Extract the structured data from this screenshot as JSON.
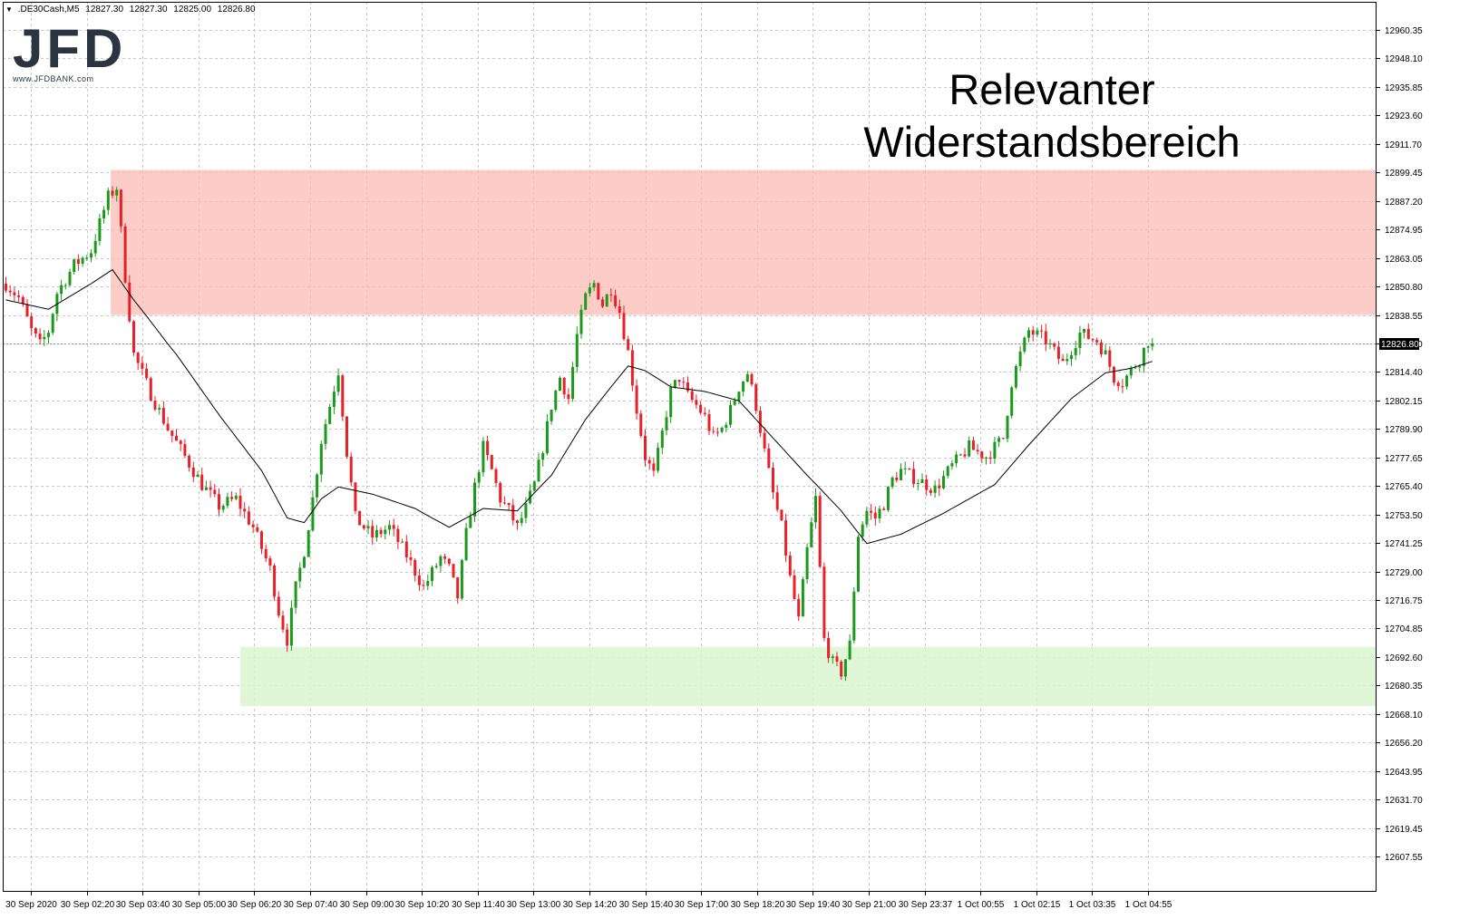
{
  "header": {
    "symbol": ".DE30Cash,M5",
    "open": "12827.30",
    "high": "12827.30",
    "low": "12825.00",
    "close": "12826.80"
  },
  "logo": {
    "text": "JFD",
    "url_text": "www.JFDBANK.com"
  },
  "annotation": {
    "line1": "Relevanter",
    "line2": "Widerstandsbereich"
  },
  "colors": {
    "bull": "#1a9a1a",
    "bear": "#e8202a",
    "resistance_zone": "#fbb8b0",
    "support_zone": "#d9f5d0",
    "grid": "#c8c8c8",
    "ma_line": "#000000"
  },
  "chart_data": {
    "type": "candlestick",
    "title": "",
    "instrument": ".DE30Cash",
    "timeframe": "M5",
    "y_ticks": [
      "12960.35",
      "12948.10",
      "12935.85",
      "12923.60",
      "12911.70",
      "12899.45",
      "12887.20",
      "12874.95",
      "12863.05",
      "12850.80",
      "12838.55",
      "12826.80",
      "12814.40",
      "12802.15",
      "12789.90",
      "12777.65",
      "12765.40",
      "12753.50",
      "12741.25",
      "12729.00",
      "12716.75",
      "12704.85",
      "12692.60",
      "12680.35",
      "12668.10",
      "12656.20",
      "12643.95",
      "12631.70",
      "12619.45",
      "12607.55"
    ],
    "ylim": [
      12605.0,
      12966.0
    ],
    "x_ticks": [
      "30 Sep 2020",
      "30 Sep 02:20",
      "30 Sep 03:40",
      "30 Sep 05:00",
      "30 Sep 06:20",
      "30 Sep 07:40",
      "30 Sep 09:00",
      "30 Sep 10:20",
      "30 Sep 11:40",
      "30 Sep 13:00",
      "30 Sep 14:20",
      "30 Sep 15:40",
      "30 Sep 17:00",
      "30 Sep 18:20",
      "30 Sep 19:40",
      "30 Sep 21:00",
      "30 Sep 23:37",
      "1 Oct 00:55",
      "1 Oct 02:15",
      "1 Oct 03:35",
      "1 Oct 04:55"
    ],
    "current_price": "12826.80",
    "zones": [
      {
        "name": "resistance",
        "from": 12838.55,
        "to": 12900.5,
        "start_x_tick": 1.43
      },
      {
        "name": "support",
        "from": 12671.5,
        "to": 12697.0,
        "start_x_tick": 3.75
      }
    ],
    "price_path": [
      [
        0,
        12852
      ],
      [
        3,
        12846
      ],
      [
        6,
        12832
      ],
      [
        8,
        12826
      ],
      [
        10,
        12832
      ],
      [
        12,
        12848
      ],
      [
        16,
        12860
      ],
      [
        20,
        12866
      ],
      [
        24,
        12889
      ],
      [
        26,
        12893
      ],
      [
        28,
        12855
      ],
      [
        30,
        12822
      ],
      [
        34,
        12805
      ],
      [
        38,
        12790
      ],
      [
        42,
        12778
      ],
      [
        46,
        12766
      ],
      [
        50,
        12757
      ],
      [
        54,
        12760
      ],
      [
        58,
        12748
      ],
      [
        62,
        12730
      ],
      [
        64,
        12712
      ],
      [
        66,
        12700
      ],
      [
        68,
        12722
      ],
      [
        70,
        12738
      ],
      [
        72,
        12760
      ],
      [
        74,
        12785
      ],
      [
        76,
        12800
      ],
      [
        78,
        12815
      ],
      [
        80,
        12780
      ],
      [
        82,
        12752
      ],
      [
        86,
        12744
      ],
      [
        90,
        12748
      ],
      [
        94,
        12736
      ],
      [
        98,
        12722
      ],
      [
        102,
        12735
      ],
      [
        104,
        12730
      ],
      [
        106,
        12718
      ],
      [
        108,
        12745
      ],
      [
        110,
        12765
      ],
      [
        112,
        12782
      ],
      [
        114,
        12772
      ],
      [
        116,
        12760
      ],
      [
        118,
        12755
      ],
      [
        120,
        12748
      ],
      [
        122,
        12756
      ],
      [
        124,
        12766
      ],
      [
        126,
        12782
      ],
      [
        128,
        12800
      ],
      [
        130,
        12812
      ],
      [
        132,
        12803
      ],
      [
        134,
        12830
      ],
      [
        136,
        12846
      ],
      [
        138,
        12852
      ],
      [
        140,
        12843
      ],
      [
        142,
        12850
      ],
      [
        144,
        12840
      ],
      [
        146,
        12823
      ],
      [
        148,
        12798
      ],
      [
        150,
        12778
      ],
      [
        152,
        12770
      ],
      [
        154,
        12788
      ],
      [
        156,
        12806
      ],
      [
        158,
        12812
      ],
      [
        160,
        12804
      ],
      [
        162,
        12800
      ],
      [
        164,
        12795
      ],
      [
        166,
        12786
      ],
      [
        168,
        12790
      ],
      [
        170,
        12798
      ],
      [
        172,
        12808
      ],
      [
        174,
        12814
      ],
      [
        176,
        12800
      ],
      [
        178,
        12780
      ],
      [
        180,
        12762
      ],
      [
        182,
        12748
      ],
      [
        184,
        12726
      ],
      [
        186,
        12708
      ],
      [
        188,
        12738
      ],
      [
        190,
        12760
      ],
      [
        192,
        12700
      ],
      [
        194,
        12690
      ],
      [
        196,
        12686
      ],
      [
        198,
        12698
      ],
      [
        200,
        12745
      ],
      [
        202,
        12755
      ],
      [
        204,
        12752
      ],
      [
        206,
        12758
      ],
      [
        208,
        12768
      ],
      [
        210,
        12772
      ],
      [
        214,
        12768
      ],
      [
        218,
        12764
      ],
      [
        222,
        12774
      ],
      [
        226,
        12782
      ],
      [
        230,
        12778
      ],
      [
        234,
        12786
      ],
      [
        236,
        12810
      ],
      [
        238,
        12822
      ],
      [
        240,
        12832
      ],
      [
        244,
        12828
      ],
      [
        248,
        12818
      ],
      [
        252,
        12831
      ],
      [
        256,
        12828
      ],
      [
        258,
        12822
      ],
      [
        260,
        12812
      ],
      [
        262,
        12810
      ],
      [
        264,
        12815
      ],
      [
        266,
        12820
      ],
      [
        268,
        12828
      ],
      [
        269,
        12826.8
      ]
    ],
    "ma_path": [
      [
        0,
        12845
      ],
      [
        10,
        12841
      ],
      [
        20,
        12852
      ],
      [
        25,
        12858
      ],
      [
        30,
        12845
      ],
      [
        40,
        12822
      ],
      [
        50,
        12796
      ],
      [
        60,
        12772
      ],
      [
        66,
        12752
      ],
      [
        70,
        12750
      ],
      [
        74,
        12760
      ],
      [
        78,
        12765
      ],
      [
        86,
        12762
      ],
      [
        96,
        12756
      ],
      [
        104,
        12748
      ],
      [
        112,
        12756
      ],
      [
        120,
        12755
      ],
      [
        128,
        12770
      ],
      [
        136,
        12794
      ],
      [
        142,
        12808
      ],
      [
        146,
        12817
      ],
      [
        150,
        12815
      ],
      [
        156,
        12808
      ],
      [
        164,
        12806
      ],
      [
        172,
        12802
      ],
      [
        180,
        12786
      ],
      [
        188,
        12770
      ],
      [
        196,
        12755
      ],
      [
        202,
        12741
      ],
      [
        210,
        12745
      ],
      [
        220,
        12754
      ],
      [
        232,
        12766
      ],
      [
        240,
        12783
      ],
      [
        250,
        12803
      ],
      [
        258,
        12814
      ],
      [
        264,
        12816
      ],
      [
        269,
        12819
      ]
    ]
  }
}
